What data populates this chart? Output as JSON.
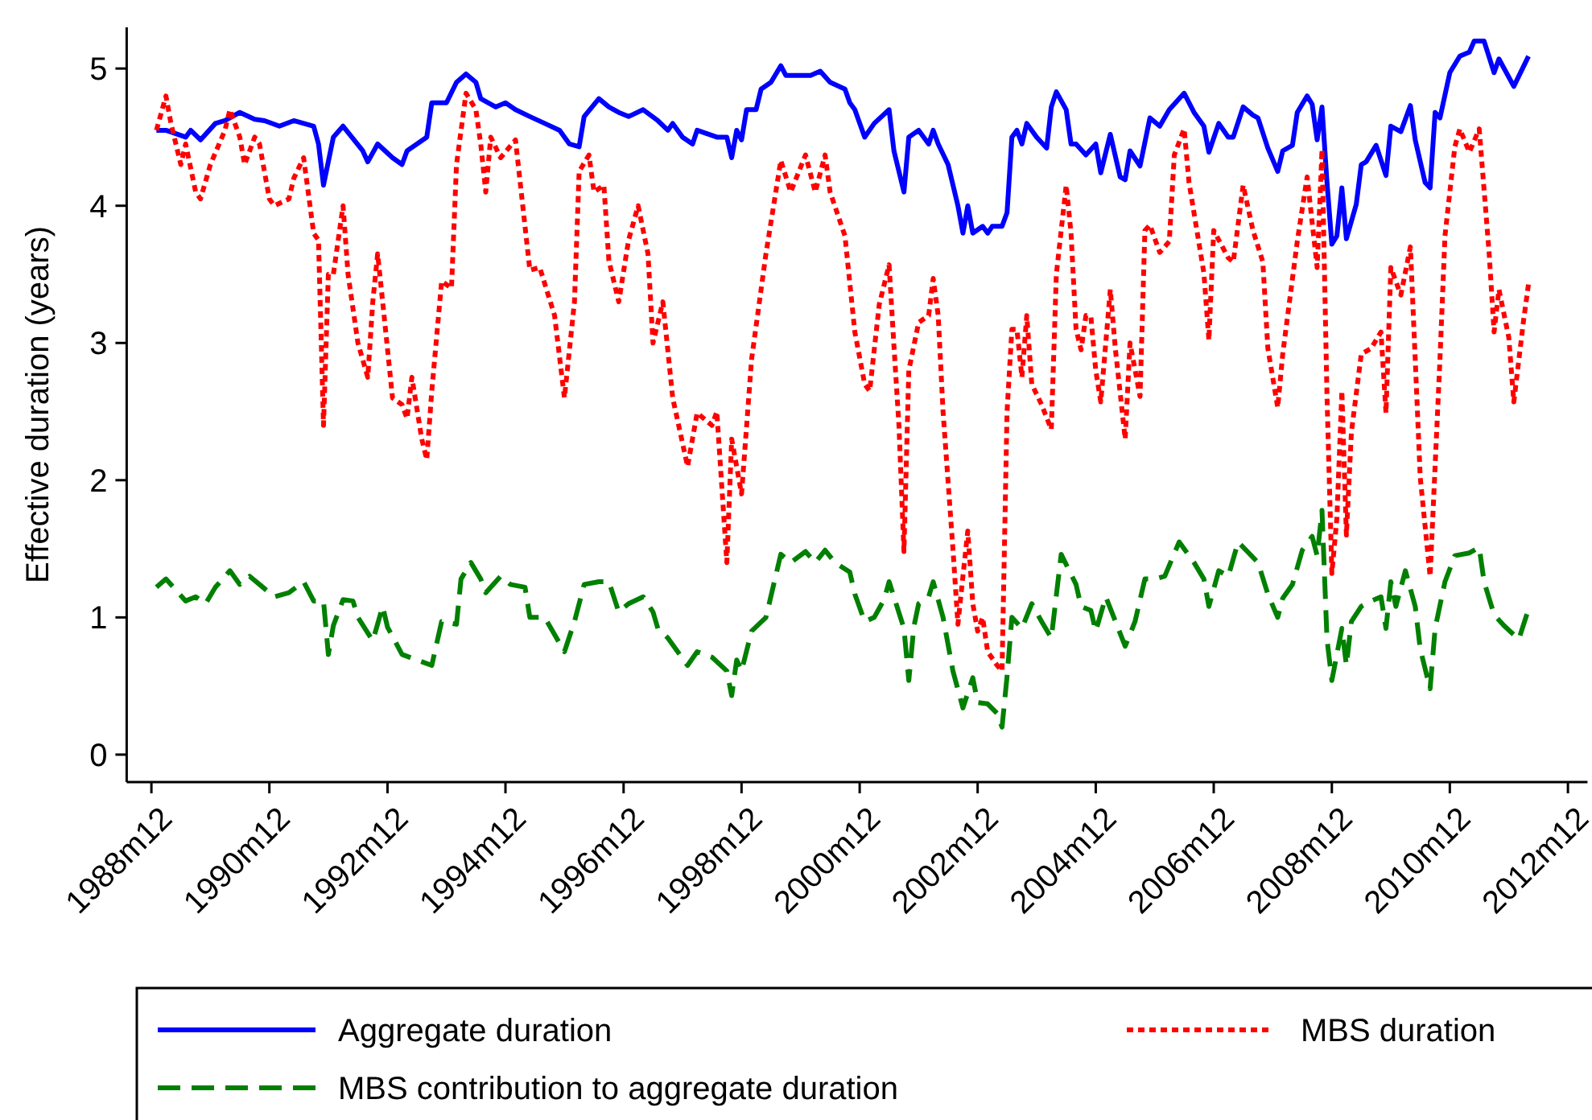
{
  "chart_data": {
    "type": "line",
    "ylabel": "Effective duration (years)",
    "xlim": [
      "1988-07",
      "2013-04"
    ],
    "ylim": [
      -0.2,
      5.3
    ],
    "yticks": [
      0,
      1,
      2,
      3,
      4,
      5
    ],
    "xticks": [
      {
        "value": "1988-12",
        "label": "1988m12"
      },
      {
        "value": "1990-12",
        "label": "1990m12"
      },
      {
        "value": "1992-12",
        "label": "1992m12"
      },
      {
        "value": "1994-12",
        "label": "1994m12"
      },
      {
        "value": "1996-12",
        "label": "1996m12"
      },
      {
        "value": "1998-12",
        "label": "1998m12"
      },
      {
        "value": "2000-12",
        "label": "2000m12"
      },
      {
        "value": "2002-12",
        "label": "2002m12"
      },
      {
        "value": "2004-12",
        "label": "2004m12"
      },
      {
        "value": "2006-12",
        "label": "2006m12"
      },
      {
        "value": "2008-12",
        "label": "2008m12"
      },
      {
        "value": "2010-12",
        "label": "2010m12"
      },
      {
        "value": "2012-12",
        "label": "2012m12"
      }
    ],
    "legend": "bottom",
    "series": [
      {
        "name": "Aggregate duration",
        "color": "#0000ff",
        "line_style": "solid",
        "x": [
          "1989-01",
          "1989-03",
          "1989-07",
          "1989-08",
          "1989-10",
          "1990-01",
          "1990-03",
          "1990-06",
          "1990-09",
          "1990-11",
          "1991-02",
          "1991-05",
          "1991-09",
          "1991-10",
          "1991-11",
          "1992-01",
          "1992-03",
          "1992-07",
          "1992-08",
          "1992-10",
          "1993-01",
          "1993-03",
          "1993-04",
          "1993-08",
          "1993-09",
          "1993-12",
          "1994-02",
          "1994-04",
          "1994-06",
          "1994-07",
          "1994-10",
          "1994-12",
          "1995-02",
          "1995-05",
          "1995-08",
          "1995-11",
          "1996-01",
          "1996-03",
          "1996-04",
          "1996-07",
          "1996-09",
          "1996-11",
          "1997-01",
          "1997-04",
          "1997-07",
          "1997-09",
          "1997-10",
          "1997-12",
          "1998-02",
          "1998-03",
          "1998-07",
          "1998-09",
          "1998-10",
          "1998-11",
          "1998-12",
          "1999-01",
          "1999-03",
          "1999-04",
          "1999-06",
          "1999-08",
          "1999-09",
          "1999-11",
          "2000-02",
          "2000-04",
          "2000-06",
          "2000-09",
          "2000-10",
          "2000-11",
          "2001-01",
          "2001-03",
          "2001-06",
          "2001-07",
          "2001-09",
          "2001-10",
          "2001-12",
          "2002-02",
          "2002-03",
          "2002-04",
          "2002-06",
          "2002-08",
          "2002-09",
          "2002-10",
          "2002-11",
          "2003-01",
          "2003-02",
          "2003-03",
          "2003-05",
          "2003-06",
          "2003-07",
          "2003-08",
          "2003-09",
          "2003-10",
          "2003-12",
          "2004-02",
          "2004-03",
          "2004-04",
          "2004-06",
          "2004-07",
          "2004-08",
          "2004-10",
          "2004-12",
          "2005-01",
          "2005-03",
          "2005-05",
          "2005-06",
          "2005-07",
          "2005-09",
          "2005-11",
          "2006-01",
          "2006-03",
          "2006-06",
          "2006-08",
          "2006-10",
          "2006-11",
          "2007-01",
          "2007-03",
          "2007-04",
          "2007-06",
          "2007-08",
          "2007-09",
          "2007-11",
          "2008-01",
          "2008-02",
          "2008-04",
          "2008-05",
          "2008-07",
          "2008-08",
          "2008-09",
          "2008-10",
          "2008-11",
          "2008-12",
          "2009-01",
          "2009-02",
          "2009-03",
          "2009-05",
          "2009-06",
          "2009-07",
          "2009-09",
          "2009-11",
          "2009-12",
          "2010-02",
          "2010-04",
          "2010-05",
          "2010-07",
          "2010-08",
          "2010-09",
          "2010-10",
          "2010-12",
          "2011-02",
          "2011-04",
          "2011-05",
          "2011-07",
          "2011-09",
          "2011-10",
          "2012-01",
          "2012-04"
        ],
        "values": [
          4.55,
          4.55,
          4.5,
          4.55,
          4.48,
          4.6,
          4.62,
          4.68,
          4.63,
          4.62,
          4.58,
          4.62,
          4.58,
          4.45,
          4.15,
          4.5,
          4.58,
          4.4,
          4.32,
          4.45,
          4.35,
          4.3,
          4.4,
          4.5,
          4.75,
          4.75,
          4.9,
          4.96,
          4.9,
          4.78,
          4.72,
          4.75,
          4.7,
          4.65,
          4.6,
          4.55,
          4.45,
          4.43,
          4.65,
          4.78,
          4.72,
          4.68,
          4.65,
          4.7,
          4.62,
          4.55,
          4.6,
          4.5,
          4.45,
          4.55,
          4.5,
          4.5,
          4.35,
          4.55,
          4.48,
          4.7,
          4.7,
          4.85,
          4.9,
          5.02,
          4.95,
          4.95,
          4.95,
          4.98,
          4.9,
          4.85,
          4.75,
          4.7,
          4.5,
          4.6,
          4.7,
          4.4,
          4.1,
          4.5,
          4.55,
          4.45,
          4.55,
          4.45,
          4.3,
          4.0,
          3.8,
          4.0,
          3.8,
          3.85,
          3.8,
          3.85,
          3.85,
          3.95,
          4.5,
          4.55,
          4.45,
          4.6,
          4.5,
          4.42,
          4.72,
          4.83,
          4.7,
          4.45,
          4.45,
          4.37,
          4.45,
          4.24,
          4.52,
          4.21,
          4.19,
          4.4,
          4.29,
          4.64,
          4.58,
          4.7,
          4.82,
          4.68,
          4.58,
          4.39,
          4.6,
          4.5,
          4.5,
          4.72,
          4.66,
          4.64,
          4.42,
          4.25,
          4.4,
          4.44,
          4.68,
          4.8,
          4.74,
          4.48,
          4.72,
          4.17,
          3.72,
          3.78,
          4.13,
          3.76,
          4.01,
          4.3,
          4.32,
          4.44,
          4.22,
          4.58,
          4.54,
          4.73,
          4.48,
          4.17,
          4.13,
          4.68,
          4.64,
          4.97,
          5.09,
          5.12,
          5.2,
          5.2,
          4.97,
          5.07,
          4.87,
          5.09
        ]
      },
      {
        "name": "MBS duration",
        "color": "#ff0000",
        "line_style": "dotted",
        "x": [
          "1989-01",
          "1989-03",
          "1989-04",
          "1989-06",
          "1989-07",
          "1989-09",
          "1989-10",
          "1989-12",
          "1990-03",
          "1990-04",
          "1990-06",
          "1990-07",
          "1990-09",
          "1990-10",
          "1990-12",
          "1991-01",
          "1991-04",
          "1991-05",
          "1991-07",
          "1991-09",
          "1991-10",
          "1991-11",
          "1991-12",
          "1992-01",
          "1992-03",
          "1992-04",
          "1992-06",
          "1992-08",
          "1992-09",
          "1992-10",
          "1992-11",
          "1993-01",
          "1993-03",
          "1993-04",
          "1993-05",
          "1993-07",
          "1993-08",
          "1993-09",
          "1993-11",
          "1994-01",
          "1994-02",
          "1994-04",
          "1994-06",
          "1994-07",
          "1994-08",
          "1994-09",
          "1994-11",
          "1995-02",
          "1995-05",
          "1995-07",
          "1995-10",
          "1995-12",
          "1996-02",
          "1996-03",
          "1996-05",
          "1996-06",
          "1996-08",
          "1996-09",
          "1996-11",
          "1997-01",
          "1997-03",
          "1997-05",
          "1997-06",
          "1997-08",
          "1997-10",
          "1998-01",
          "1998-03",
          "1998-06",
          "1998-07",
          "1998-09",
          "1998-10",
          "1998-12",
          "1999-02",
          "1999-05",
          "1999-08",
          "1999-10",
          "2000-01",
          "2000-03",
          "2000-05",
          "2000-06",
          "2000-09",
          "2000-11",
          "2001-01",
          "2001-02",
          "2001-04",
          "2001-06",
          "2001-07",
          "2001-08",
          "2001-09",
          "2001-10",
          "2001-12",
          "2002-02",
          "2002-03",
          "2002-04",
          "2002-05",
          "2002-07",
          "2002-08",
          "2002-09",
          "2002-10",
          "2002-11",
          "2002-12",
          "2003-01",
          "2003-02",
          "2003-04",
          "2003-05",
          "2003-06",
          "2003-07",
          "2003-08",
          "2003-09",
          "2003-10",
          "2003-11",
          "2004-01",
          "2004-03",
          "2004-04",
          "2004-06",
          "2004-07",
          "2004-08",
          "2004-09",
          "2004-10",
          "2004-11",
          "2004-12",
          "2005-01",
          "2005-03",
          "2005-04",
          "2005-06",
          "2005-07",
          "2005-09",
          "2005-10",
          "2005-11",
          "2006-01",
          "2006-03",
          "2006-04",
          "2006-06",
          "2006-07",
          "2006-10",
          "2006-11",
          "2006-12",
          "2007-03",
          "2007-04",
          "2007-06",
          "2007-08",
          "2007-10",
          "2007-11",
          "2008-01",
          "2008-02",
          "2008-05",
          "2008-07",
          "2008-09",
          "2008-10",
          "2008-11",
          "2008-12",
          "2009-01",
          "2009-02",
          "2009-03",
          "2009-04",
          "2009-06",
          "2009-08",
          "2009-10",
          "2009-11",
          "2009-12",
          "2010-02",
          "2010-04",
          "2010-05",
          "2010-06",
          "2010-08",
          "2010-10",
          "2010-11",
          "2011-01",
          "2011-02",
          "2011-04",
          "2011-06",
          "2011-08",
          "2011-09",
          "2011-10",
          "2011-12",
          "2012-01",
          "2012-03",
          "2012-04"
        ],
        "values": [
          4.55,
          4.8,
          4.6,
          4.3,
          4.45,
          4.1,
          4.05,
          4.3,
          4.55,
          4.7,
          4.5,
          4.3,
          4.5,
          4.45,
          4.05,
          4.0,
          4.05,
          4.2,
          4.35,
          3.8,
          3.75,
          2.4,
          3.5,
          3.5,
          4.0,
          3.5,
          3.0,
          2.75,
          3.3,
          3.65,
          3.3,
          2.6,
          2.55,
          2.45,
          2.75,
          2.3,
          2.15,
          2.65,
          3.45,
          3.4,
          4.3,
          4.82,
          4.7,
          4.45,
          4.1,
          4.5,
          4.35,
          4.48,
          3.53,
          3.55,
          3.2,
          2.6,
          3.3,
          4.25,
          4.37,
          4.1,
          4.15,
          3.6,
          3.3,
          3.75,
          4.0,
          3.65,
          3.0,
          3.3,
          2.6,
          2.1,
          2.49,
          2.4,
          2.5,
          1.4,
          2.3,
          1.9,
          2.88,
          3.65,
          4.33,
          4.1,
          4.37,
          4.1,
          4.37,
          4.1,
          3.78,
          3.08,
          2.7,
          2.65,
          3.28,
          3.57,
          2.98,
          2.4,
          1.48,
          2.8,
          3.15,
          3.2,
          3.47,
          3.2,
          2.5,
          1.5,
          0.95,
          1.3,
          1.63,
          1.1,
          0.9,
          1.0,
          0.75,
          0.65,
          0.61,
          2.5,
          3.1,
          3.1,
          2.75,
          3.2,
          2.7,
          2.55,
          2.37,
          3.5,
          4.15,
          3.8,
          3.1,
          2.95,
          3.2,
          3.19,
          2.8,
          2.57,
          3.39,
          2.96,
          2.3,
          3.0,
          2.61,
          3.82,
          3.86,
          3.66,
          3.74,
          4.37,
          4.56,
          4.17,
          3.51,
          3.02,
          3.82,
          3.62,
          3.59,
          4.15,
          3.82,
          3.59,
          2.96,
          2.53,
          2.92,
          3.74,
          4.21,
          3.55,
          4.41,
          2.61,
          1.32,
          1.72,
          2.65,
          1.6,
          2.35,
          2.92,
          2.96,
          3.08,
          2.49,
          3.55,
          3.35,
          3.7,
          2.88,
          2.02,
          1.3,
          2.88,
          3.78,
          4.43,
          4.56,
          4.39,
          4.56,
          3.66,
          3.08,
          3.39,
          3.04,
          2.57,
          3.16,
          3.43
        ]
      },
      {
        "name": "MBS contribution to aggregate duration",
        "color": "#008000",
        "line_style": "dashed",
        "x": [
          "1989-01",
          "1989-03",
          "1989-07",
          "1989-09",
          "1989-11",
          "1990-01",
          "1990-04",
          "1990-06",
          "1990-08",
          "1990-10",
          "1991-01",
          "1991-04",
          "1991-07",
          "1991-09",
          "1991-11",
          "1991-12",
          "1992-01",
          "1992-03",
          "1992-05",
          "1992-06",
          "1992-09",
          "1992-11",
          "1992-12",
          "1993-03",
          "1993-06",
          "1993-09",
          "1993-11",
          "1994-02",
          "1994-03",
          "1994-05",
          "1994-07",
          "1994-08",
          "1994-11",
          "1995-01",
          "1995-04",
          "1995-05",
          "1995-08",
          "1995-12",
          "1996-02",
          "1996-04",
          "1996-07",
          "1996-09",
          "1996-11",
          "1997-01",
          "1997-04",
          "1997-06",
          "1997-07",
          "1997-09",
          "1998-01",
          "1998-03",
          "1998-06",
          "1998-09",
          "1998-10",
          "1998-11",
          "1998-12",
          "1999-02",
          "1999-05",
          "1999-08",
          "1999-10",
          "2000-01",
          "2000-03",
          "2000-05",
          "2000-07",
          "2000-10",
          "2000-11",
          "2001-01",
          "2001-03",
          "2001-05",
          "2001-06",
          "2001-09",
          "2001-10",
          "2001-11",
          "2001-12",
          "2002-02",
          "2002-03",
          "2002-05",
          "2002-07",
          "2002-09",
          "2002-11",
          "2002-12",
          "2003-02",
          "2003-04",
          "2003-05",
          "2003-06",
          "2003-07",
          "2003-09",
          "2003-11",
          "2004-01",
          "2004-03",
          "2004-05",
          "2004-08",
          "2004-09",
          "2004-11",
          "2004-12",
          "2005-02",
          "2005-06",
          "2005-08",
          "2005-10",
          "2005-12",
          "2006-02",
          "2006-05",
          "2006-08",
          "2006-10",
          "2006-11",
          "2007-01",
          "2007-03",
          "2007-05",
          "2007-09",
          "2007-11",
          "2008-01",
          "2008-02",
          "2008-04",
          "2008-06",
          "2008-08",
          "2008-09",
          "2008-10",
          "2008-11",
          "2008-12",
          "2009-02",
          "2009-03",
          "2009-04",
          "2009-06",
          "2009-08",
          "2009-10",
          "2009-11",
          "2009-12",
          "2010-01",
          "2010-03",
          "2010-05",
          "2010-06",
          "2010-08",
          "2010-09",
          "2010-11",
          "2011-01",
          "2011-04",
          "2011-06",
          "2011-07",
          "2011-09",
          "2011-11",
          "2012-02",
          "2012-04"
        ],
        "values": [
          1.22,
          1.28,
          1.12,
          1.15,
          1.1,
          1.22,
          1.34,
          1.24,
          1.3,
          1.24,
          1.15,
          1.18,
          1.26,
          1.12,
          1.12,
          0.73,
          0.94,
          1.13,
          1.12,
          1.0,
          0.83,
          1.08,
          0.93,
          0.73,
          0.69,
          0.65,
          0.97,
          0.95,
          1.28,
          1.4,
          1.28,
          1.18,
          1.3,
          1.24,
          1.22,
          1.0,
          1.0,
          0.75,
          0.97,
          1.24,
          1.26,
          1.26,
          1.04,
          1.1,
          1.15,
          1.04,
          0.92,
          0.85,
          0.65,
          0.75,
          0.71,
          0.61,
          0.43,
          0.69,
          0.61,
          0.9,
          1.0,
          1.46,
          1.4,
          1.48,
          1.4,
          1.49,
          1.4,
          1.33,
          1.17,
          0.97,
          1.0,
          1.13,
          1.26,
          0.92,
          0.54,
          0.93,
          1.1,
          1.15,
          1.26,
          1.0,
          0.61,
          0.34,
          0.56,
          0.38,
          0.37,
          0.3,
          0.2,
          0.57,
          1.0,
          0.92,
          1.1,
          0.97,
          0.85,
          1.46,
          1.24,
          1.08,
          1.05,
          0.9,
          1.15,
          0.79,
          0.97,
          1.28,
          1.28,
          1.3,
          1.55,
          1.4,
          1.28,
          1.08,
          1.34,
          1.3,
          1.55,
          1.4,
          1.17,
          1.0,
          1.14,
          1.24,
          1.49,
          1.59,
          1.45,
          1.78,
          0.84,
          0.54,
          0.92,
          0.65,
          0.97,
          1.08,
          1.12,
          1.15,
          0.92,
          1.26,
          1.08,
          1.34,
          1.08,
          0.77,
          0.48,
          0.92,
          1.26,
          1.45,
          1.47,
          1.51,
          1.26,
          1.02,
          0.94,
          0.84,
          1.06
        ]
      }
    ]
  }
}
